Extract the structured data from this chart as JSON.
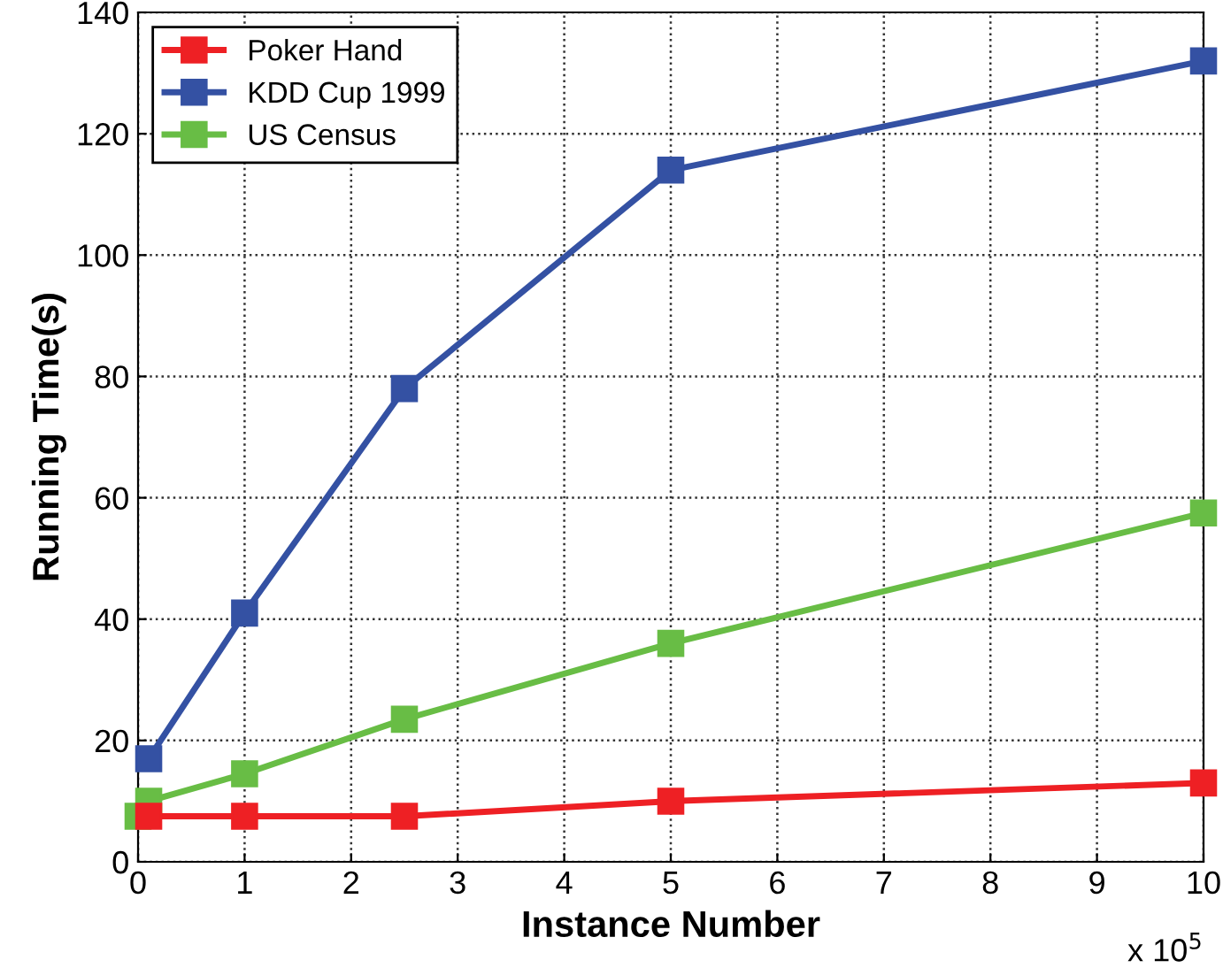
{
  "chart_data": {
    "type": "line",
    "xlabel": "Instance Number",
    "ylabel": "Running Time(s)",
    "x": [
      0,
      0.1,
      1,
      2.5,
      5,
      10
    ],
    "series": [
      {
        "name": "Poker Hand",
        "color": "#ee2024",
        "values": [
          null,
          7.5,
          7.5,
          7.5,
          10,
          13
        ]
      },
      {
        "name": "KDD Cup 1999",
        "color": "#3451a3",
        "values": [
          null,
          17,
          41,
          78,
          114,
          132
        ]
      },
      {
        "name": "US Census",
        "color": "#68bd45",
        "values": [
          7.5,
          10,
          14.5,
          23.5,
          36,
          57.5
        ]
      }
    ],
    "xlim": [
      0,
      10
    ],
    "ylim": [
      0,
      140
    ],
    "xticks": [
      0,
      1,
      2,
      3,
      4,
      5,
      6,
      7,
      8,
      9,
      10
    ],
    "yticks": [
      0,
      20,
      40,
      60,
      80,
      100,
      120,
      140
    ],
    "annotations": [
      "x 10$^{5}$"
    ],
    "grid": true,
    "legend": "top left",
    "marker": "square",
    "line_style": "solid"
  }
}
